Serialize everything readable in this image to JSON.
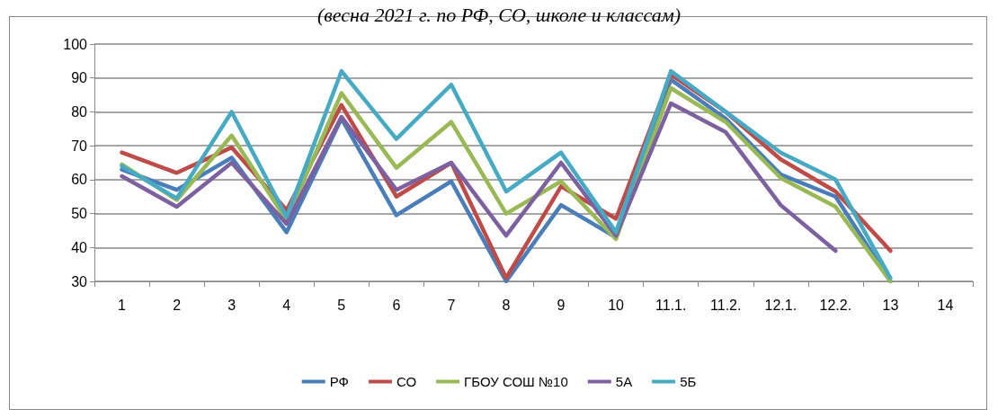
{
  "chart_data": {
    "type": "line",
    "title": "(весна 2021 г. по РФ, СО, школе и классам)",
    "categories": [
      "1",
      "2",
      "3",
      "4",
      "5",
      "6",
      "7",
      "8",
      "9",
      "10",
      "11.1.",
      "11.2.",
      "12.1.",
      "12.2.",
      "13",
      "14"
    ],
    "series": [
      {
        "name": "РФ",
        "color": "#4a7ebb",
        "values": [
          63,
          57,
          66.5,
          44.5,
          78,
          49.5,
          59.5,
          30,
          52.5,
          43,
          89.5,
          78,
          61.5,
          55,
          30,
          null
        ]
      },
      {
        "name": "СО",
        "color": "#be4b48",
        "values": [
          68,
          62,
          69.5,
          51,
          82,
          55,
          65,
          31,
          58,
          48.5,
          91,
          80,
          66,
          56.5,
          39,
          null
        ]
      },
      {
        "name": "ГБОУ СОШ №10",
        "color": "#98b954",
        "values": [
          64.5,
          54,
          73,
          48,
          85.5,
          63.5,
          77,
          50,
          59.5,
          42.5,
          87,
          77,
          60.5,
          52,
          30,
          null
        ]
      },
      {
        "name": "5А",
        "color": "#7d60a0",
        "values": [
          61,
          52,
          65,
          47,
          78.5,
          57,
          65,
          43.5,
          65,
          43.5,
          82.5,
          74,
          52.5,
          39,
          null,
          null
        ]
      },
      {
        "name": "5Б",
        "color": "#46aac5",
        "values": [
          64,
          54.5,
          80,
          49,
          92,
          72,
          88,
          56.5,
          68,
          44.5,
          92,
          80,
          68,
          60,
          31,
          null
        ]
      }
    ],
    "ylim": [
      30,
      100
    ],
    "yticks": [
      30,
      40,
      50,
      60,
      70,
      80,
      90,
      100
    ],
    "grid": "y",
    "legend": "bottom",
    "marker": "none",
    "line_style": "solid"
  }
}
